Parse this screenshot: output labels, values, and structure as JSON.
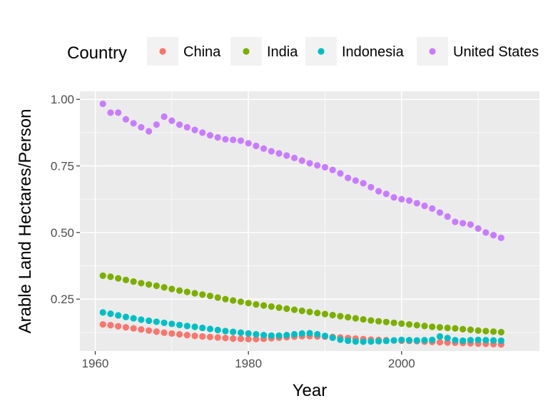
{
  "chart_data": {
    "type": "scatter",
    "xlabel": "Year",
    "ylabel": "Arable Land Hectares/Person",
    "xlim": [
      1958,
      2018
    ],
    "ylim": [
      0.055,
      1.03
    ],
    "x_ticks": [
      1960,
      1980,
      2000
    ],
    "x_tick_labels": [
      "1960",
      "1980",
      "2000"
    ],
    "y_ticks": [
      0.25,
      0.5,
      0.75,
      1.0
    ],
    "y_tick_labels": [
      "0.25",
      "0.50",
      "0.75",
      "1.00"
    ],
    "grid": true,
    "legend": {
      "title": "Country",
      "placement": "top"
    },
    "x": [
      1961,
      1962,
      1963,
      1964,
      1965,
      1966,
      1967,
      1968,
      1969,
      1970,
      1971,
      1972,
      1973,
      1974,
      1975,
      1976,
      1977,
      1978,
      1979,
      1980,
      1981,
      1982,
      1983,
      1984,
      1985,
      1986,
      1987,
      1988,
      1989,
      1990,
      1991,
      1992,
      1993,
      1994,
      1995,
      1996,
      1997,
      1998,
      1999,
      2000,
      2001,
      2002,
      2003,
      2004,
      2005,
      2006,
      2007,
      2008,
      2009,
      2010,
      2011,
      2012,
      2013
    ],
    "series": [
      {
        "name": "China",
        "color": "#F8766D",
        "values": [
          0.155,
          0.152,
          0.148,
          0.144,
          0.14,
          0.136,
          0.132,
          0.128,
          0.124,
          0.121,
          0.118,
          0.115,
          0.112,
          0.11,
          0.108,
          0.106,
          0.104,
          0.102,
          0.101,
          0.1,
          0.1,
          0.101,
          0.103,
          0.105,
          0.107,
          0.109,
          0.111,
          0.111,
          0.11,
          0.109,
          0.108,
          0.106,
          0.104,
          0.102,
          0.1,
          0.098,
          0.097,
          0.096,
          0.095,
          0.094,
          0.093,
          0.092,
          0.09,
          0.089,
          0.088,
          0.087,
          0.086,
          0.085,
          0.084,
          0.083,
          0.082,
          0.081,
          0.08
        ]
      },
      {
        "name": "India",
        "color": "#7CAE00",
        "values": [
          0.338,
          0.334,
          0.328,
          0.322,
          0.316,
          0.31,
          0.305,
          0.3,
          0.294,
          0.288,
          0.282,
          0.277,
          0.272,
          0.267,
          0.262,
          0.256,
          0.25,
          0.245,
          0.24,
          0.235,
          0.23,
          0.226,
          0.222,
          0.218,
          0.214,
          0.21,
          0.206,
          0.202,
          0.198,
          0.194,
          0.19,
          0.186,
          0.182,
          0.178,
          0.174,
          0.17,
          0.167,
          0.164,
          0.161,
          0.158,
          0.155,
          0.152,
          0.149,
          0.146,
          0.144,
          0.142,
          0.14,
          0.137,
          0.135,
          0.132,
          0.13,
          0.128,
          0.126
        ]
      },
      {
        "name": "Indonesia",
        "color": "#00BFC4",
        "values": [
          0.2,
          0.195,
          0.189,
          0.183,
          0.178,
          0.173,
          0.169,
          0.165,
          0.161,
          0.157,
          0.153,
          0.149,
          0.146,
          0.142,
          0.138,
          0.134,
          0.13,
          0.127,
          0.124,
          0.121,
          0.118,
          0.115,
          0.113,
          0.113,
          0.115,
          0.118,
          0.121,
          0.122,
          0.118,
          0.112,
          0.105,
          0.098,
          0.094,
          0.091,
          0.09,
          0.091,
          0.092,
          0.093,
          0.095,
          0.097,
          0.096,
          0.095,
          0.096,
          0.097,
          0.11,
          0.104,
          0.096,
          0.094,
          0.096,
          0.097,
          0.096,
          0.095,
          0.094
        ]
      },
      {
        "name": "United States",
        "color": "#C77CFF",
        "values": [
          0.983,
          0.95,
          0.95,
          0.925,
          0.91,
          0.895,
          0.88,
          0.905,
          0.935,
          0.92,
          0.905,
          0.895,
          0.885,
          0.875,
          0.865,
          0.857,
          0.85,
          0.848,
          0.845,
          0.835,
          0.825,
          0.815,
          0.805,
          0.797,
          0.789,
          0.78,
          0.77,
          0.76,
          0.752,
          0.745,
          0.735,
          0.722,
          0.705,
          0.695,
          0.685,
          0.67,
          0.655,
          0.645,
          0.632,
          0.625,
          0.62,
          0.61,
          0.6,
          0.59,
          0.575,
          0.56,
          0.54,
          0.535,
          0.53,
          0.515,
          0.5,
          0.49,
          0.48
        ]
      }
    ]
  }
}
